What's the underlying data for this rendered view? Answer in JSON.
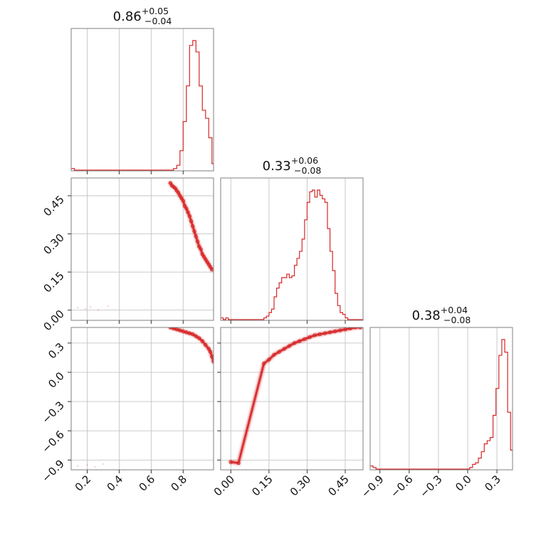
{
  "chart_data": {
    "type": "corner",
    "color": "#d62728",
    "grid": true,
    "parameters": [
      {
        "id": "p1",
        "title": {
          "median": "0.86",
          "plus": "+0.05",
          "minus": "−0.04"
        },
        "range": [
          0.1,
          0.99
        ],
        "ticks": [
          {
            "v": 0.2,
            "label": "0.2"
          },
          {
            "v": 0.4,
            "label": "0.4"
          },
          {
            "v": 0.6,
            "label": "0.6"
          },
          {
            "v": 0.8,
            "label": "0.8"
          }
        ]
      },
      {
        "id": "p2",
        "title": {
          "median": "0.33",
          "plus": "+0.06",
          "minus": "−0.08"
        },
        "range": [
          -0.04,
          0.52
        ],
        "ticks": [
          {
            "v": 0.0,
            "label": "0.00"
          },
          {
            "v": 0.15,
            "label": "0.15"
          },
          {
            "v": 0.3,
            "label": "0.30"
          },
          {
            "v": 0.45,
            "label": "0.45"
          }
        ]
      },
      {
        "id": "p3",
        "title": {
          "median": "0.38",
          "plus": "+0.04",
          "minus": "−0.08"
        },
        "range": [
          -1.0,
          0.46
        ],
        "ticks": [
          {
            "v": -0.9,
            "label": "−0.9"
          },
          {
            "v": -0.6,
            "label": "−0.6"
          },
          {
            "v": -0.3,
            "label": "−0.3"
          },
          {
            "v": 0.0,
            "label": "0.0"
          },
          {
            "v": 0.3,
            "label": "0.3"
          }
        ]
      }
    ],
    "histograms": [
      {
        "param": "p1",
        "bins": [
          0.1,
          0.12,
          0.14,
          0.16,
          0.18,
          0.2,
          0.22,
          0.24,
          0.26,
          0.28,
          0.3,
          0.32,
          0.34,
          0.36,
          0.38,
          0.4,
          0.42,
          0.44,
          0.46,
          0.48,
          0.5,
          0.52,
          0.54,
          0.56,
          0.58,
          0.6,
          0.62,
          0.64,
          0.66,
          0.68,
          0.7,
          0.72,
          0.74,
          0.76,
          0.78,
          0.8,
          0.82,
          0.84,
          0.86,
          0.88,
          0.9,
          0.92,
          0.94,
          0.96,
          0.98,
          0.99
        ],
        "counts": [
          1,
          0,
          0,
          0,
          0,
          0,
          0,
          0,
          0,
          0,
          0,
          0,
          0,
          0,
          0,
          0,
          0,
          0,
          0,
          0,
          0,
          0,
          0,
          0,
          0,
          0,
          0,
          0,
          0,
          0,
          0,
          0,
          1,
          3,
          12,
          30,
          52,
          77,
          80,
          73,
          52,
          37,
          32,
          20,
          4
        ]
      },
      {
        "param": "p2",
        "bins": [
          -0.04,
          -0.03,
          -0.02,
          -0.01,
          0.0,
          0.01,
          0.02,
          0.03,
          0.04,
          0.05,
          0.06,
          0.07,
          0.08,
          0.09,
          0.1,
          0.11,
          0.12,
          0.13,
          0.14,
          0.15,
          0.16,
          0.17,
          0.18,
          0.19,
          0.2,
          0.21,
          0.22,
          0.23,
          0.24,
          0.25,
          0.26,
          0.27,
          0.28,
          0.29,
          0.3,
          0.31,
          0.32,
          0.33,
          0.34,
          0.35,
          0.36,
          0.37,
          0.38,
          0.39,
          0.4,
          0.41,
          0.42,
          0.43,
          0.44,
          0.45,
          0.46,
          0.47,
          0.48,
          0.49,
          0.5,
          0.51,
          0.52
        ],
        "counts": [
          1,
          0,
          1,
          0,
          0,
          0,
          0,
          0,
          0,
          0,
          0,
          0,
          0,
          0,
          0,
          0,
          0,
          1,
          2,
          4,
          6,
          13,
          18,
          21,
          24,
          24,
          26,
          24,
          25,
          31,
          35,
          39,
          46,
          57,
          67,
          73,
          74,
          70,
          74,
          71,
          69,
          67,
          52,
          39,
          28,
          15,
          8,
          4,
          3,
          1,
          0,
          0,
          0,
          0,
          0,
          0
        ]
      },
      {
        "param": "p3",
        "bins": [
          -1.0,
          -0.97,
          -0.94,
          -0.91,
          -0.88,
          -0.85,
          -0.82,
          -0.79,
          -0.76,
          -0.73,
          -0.7,
          -0.67,
          -0.64,
          -0.61,
          -0.58,
          -0.55,
          -0.52,
          -0.49,
          -0.46,
          -0.43,
          -0.4,
          -0.37,
          -0.34,
          -0.31,
          -0.28,
          -0.25,
          -0.22,
          -0.19,
          -0.16,
          -0.13,
          -0.1,
          -0.07,
          -0.04,
          -0.01,
          0.02,
          0.05,
          0.08,
          0.11,
          0.14,
          0.17,
          0.2,
          0.23,
          0.26,
          0.29,
          0.32,
          0.35,
          0.38,
          0.41,
          0.44,
          0.46
        ],
        "counts": [
          2,
          1,
          0,
          0,
          0,
          0,
          0,
          0,
          0,
          0,
          0,
          0,
          0,
          0,
          0,
          0,
          0,
          0,
          0,
          0,
          0,
          0,
          0,
          0,
          0,
          0,
          0,
          0,
          0,
          0,
          0,
          0,
          0,
          0,
          1,
          3,
          4,
          7,
          11,
          16,
          18,
          20,
          34,
          51,
          72,
          82,
          74,
          36,
          12
        ]
      }
    ],
    "scatter": [
      {
        "x": "p1",
        "y": "p2",
        "points": [
          [
            0.14,
            0.01
          ],
          [
            0.19,
            0.005
          ],
          [
            0.22,
            0.012
          ],
          [
            0.27,
            0.0
          ],
          [
            0.33,
            0.016
          ],
          [
            0.72,
            0.5
          ],
          [
            0.73,
            0.49
          ],
          [
            0.74,
            0.485
          ],
          [
            0.75,
            0.48
          ],
          [
            0.76,
            0.47
          ],
          [
            0.77,
            0.462
          ],
          [
            0.78,
            0.45
          ],
          [
            0.79,
            0.44
          ],
          [
            0.8,
            0.43
          ],
          [
            0.81,
            0.41
          ],
          [
            0.82,
            0.4
          ],
          [
            0.83,
            0.385
          ],
          [
            0.84,
            0.37
          ],
          [
            0.85,
            0.35
          ],
          [
            0.86,
            0.33
          ],
          [
            0.87,
            0.31
          ],
          [
            0.88,
            0.29
          ],
          [
            0.89,
            0.27
          ],
          [
            0.9,
            0.25
          ],
          [
            0.91,
            0.24
          ],
          [
            0.92,
            0.22
          ],
          [
            0.93,
            0.21
          ],
          [
            0.94,
            0.2
          ],
          [
            0.95,
            0.19
          ],
          [
            0.96,
            0.18
          ],
          [
            0.97,
            0.17
          ],
          [
            0.98,
            0.16
          ]
        ]
      },
      {
        "x": "p1",
        "y": "p3",
        "points": [
          [
            0.14,
            -0.96
          ],
          [
            0.2,
            -0.95
          ],
          [
            0.25,
            -0.97
          ],
          [
            0.3,
            -0.94
          ],
          [
            0.72,
            0.46
          ],
          [
            0.74,
            0.45
          ],
          [
            0.76,
            0.44
          ],
          [
            0.78,
            0.43
          ],
          [
            0.8,
            0.42
          ],
          [
            0.82,
            0.41
          ],
          [
            0.84,
            0.4
          ],
          [
            0.86,
            0.39
          ],
          [
            0.88,
            0.37
          ],
          [
            0.9,
            0.35
          ],
          [
            0.92,
            0.32
          ],
          [
            0.94,
            0.28
          ],
          [
            0.96,
            0.24
          ],
          [
            0.97,
            0.21
          ],
          [
            0.98,
            0.16
          ],
          [
            0.99,
            0.11
          ]
        ]
      },
      {
        "x": "p2",
        "y": "p3",
        "points": [
          [
            0.0,
            -0.92
          ],
          [
            0.03,
            -0.93
          ],
          [
            0.13,
            0.09
          ],
          [
            0.15,
            0.13
          ],
          [
            0.17,
            0.18
          ],
          [
            0.19,
            0.21
          ],
          [
            0.21,
            0.24
          ],
          [
            0.23,
            0.27
          ],
          [
            0.25,
            0.3
          ],
          [
            0.27,
            0.32
          ],
          [
            0.29,
            0.34
          ],
          [
            0.31,
            0.36
          ],
          [
            0.33,
            0.38
          ],
          [
            0.35,
            0.39
          ],
          [
            0.37,
            0.4
          ],
          [
            0.39,
            0.41
          ],
          [
            0.41,
            0.42
          ],
          [
            0.43,
            0.43
          ],
          [
            0.45,
            0.44
          ],
          [
            0.47,
            0.45
          ],
          [
            0.49,
            0.46
          ],
          [
            0.51,
            0.46
          ]
        ]
      }
    ]
  }
}
